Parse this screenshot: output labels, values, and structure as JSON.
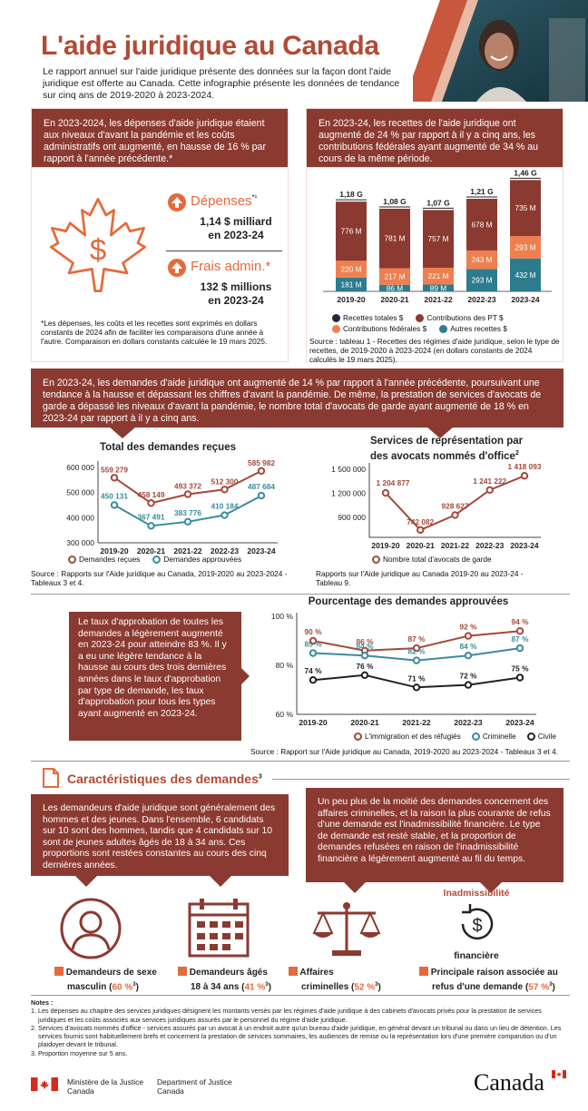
{
  "header": {
    "title": "L'aide juridique au Canada",
    "intro": "Le rapport annuel sur l'aide juridique présente des données sur la façon dont l'aide juridique est offerte au Canada. Cette infographie présente les données de tendance sur cinq ans de 2019-2020 à 2023-2024."
  },
  "box1": {
    "text": "En 2023-2024, les dépenses d'aide juridique étaient aux niveaux d'avant la pandémie et les coûts administratifs ont augmenté, en hausse de 16 % par rapport à l'année précédente.*"
  },
  "box2": {
    "text": "En 2023-24, les recettes de l'aide juridique ont augmenté de 24 % par rapport à il y a cinq ans, les contributions fédérales ayant augmenté de 34 % au cours de la même période."
  },
  "spend": {
    "label1": "Dépenses",
    "sup1": "*¹",
    "value1": "1,14 $ milliard",
    "year1": "en 2023-24",
    "label2": "Frais admin.*",
    "value2": "132 $ millions",
    "year2": "en 2023-24",
    "footnote": "*Les dépenses, les coûts et les recettes sont exprimés en dollars constants de 2024 afin de faciliter les comparaisons d'une année à l'autre. Comparaison en dollars constants calculée le 19 mars 2025."
  },
  "revenue_chart": {
    "type": "bar",
    "categories": [
      "2019-20",
      "2020-21",
      "2021-22",
      "2022-23",
      "2023-24"
    ],
    "totals": [
      "1,18 G",
      "1,08 G",
      "1,07 G",
      "1,21 G",
      "1,46 G"
    ],
    "series": [
      {
        "name": "Autres recettes $",
        "values": [
          181,
          86,
          89,
          293,
          432
        ],
        "labels": [
          "181 M",
          "86 M",
          "89 M",
          "293 M",
          "432 M"
        ],
        "color": "#2d7c8e"
      },
      {
        "name": "Contributions fédérales $",
        "values": [
          220,
          217,
          221,
          243,
          293
        ],
        "labels": [
          "220 M",
          "217 M",
          "221 M",
          "243 M",
          "293 M"
        ],
        "color": "#f07f4f"
      },
      {
        "name": "Contributions des PT $",
        "values": [
          776,
          781,
          757,
          678,
          735
        ],
        "labels": [
          "776 M",
          "781 M",
          "757 M",
          "678 M",
          "735 M"
        ],
        "color": "#8b3a31"
      }
    ],
    "legend": [
      "Recettes totales $",
      "Contributions des PT $",
      "Contributions fédérales $",
      "Autres recettes $"
    ],
    "source": "Source : tableau 1 - Recettes des régimes d'aide juridique, selon le type de recettes, de 2019-2020 à 2023-2024 (en dollars constants de 2024 calculés le 19 mars 2025)."
  },
  "box3": {
    "text": "En 2023-24, les demandes d'aide juridique ont augmenté de 14 % par rapport à l'année précédente, poursuivant une tendance à la hausse et dépassant les chiffres d'avant la pandémie. De même, la prestation de services d'avocats de garde a dépassé les niveaux d'avant la pandémie, le nombre total d'avocats de garde ayant augmenté de 18 % en 2023-24 par rapport à il y a cinq ans."
  },
  "requests_chart": {
    "type": "line",
    "title": "Total des demandes reçues",
    "x": [
      "2019-20",
      "2020-21",
      "2021-22",
      "2022-23",
      "2023-24"
    ],
    "yticks": [
      "600 000",
      "500 000",
      "400 000",
      "300 000"
    ],
    "ylim": [
      300000,
      600000
    ],
    "series": [
      {
        "name": "Demandes reçues",
        "values": [
          559279,
          458149,
          493372,
          512300,
          585982
        ],
        "labels": [
          "559 279",
          "458 149",
          "493 372",
          "512 300",
          "585 982"
        ],
        "color": "#a5493a"
      },
      {
        "name": "Demandes approuvées",
        "values": [
          450131,
          367491,
          383776,
          410184,
          487684
        ],
        "labels": [
          "450 131",
          "367 491",
          "383 776",
          "410 184",
          "487 684"
        ],
        "color": "#3a8c9c"
      }
    ],
    "source": "Source : Rapports sur l'Aide juridique au Canada, 2019-2020 au 2023-2024 - Tableaux 3 et 4."
  },
  "duty_chart": {
    "type": "line",
    "title1": "Services de représentation par",
    "title2": "des avocats nommés d'office",
    "title_sup": "2",
    "x": [
      "2019-20",
      "2020-21",
      "2021-22",
      "2022-23",
      "2023-24"
    ],
    "yticks": [
      "1 500 000",
      "1 200 000",
      "900 000"
    ],
    "ylim": [
      650000,
      1500000
    ],
    "series": [
      {
        "name": "Nombre total d'avocats de garde",
        "values": [
          1204877,
          742082,
          928627,
          1241222,
          1418093
        ],
        "labels": [
          "1 204 877",
          "742 082",
          "928 627",
          "1 241 222",
          "1 418 093"
        ],
        "color": "#a5493a"
      }
    ],
    "source": "Rapports sur l'Aide juridique au Canada 2019-20 au 2023-24 - Tableau 9."
  },
  "approval_box": {
    "text": "Le taux d'approbation de toutes les demandes a légèrement augmenté en 2023-24 pour atteindre 83 %. Il y a eu une légère tendance à la hausse au cours des trois dernières années dans le taux d'approbation par type de demande, les taux d'approbation pour tous les types ayant augmenté en 2023-24."
  },
  "approval_chart": {
    "type": "line",
    "title": "Pourcentage des demandes approuvées",
    "x": [
      "2019-20",
      "2020-21",
      "2021-22",
      "2022-23",
      "2023-24"
    ],
    "yticks": [
      "100 %",
      "80 %",
      "60 %"
    ],
    "ylim": [
      60,
      100
    ],
    "series": [
      {
        "name": "L'immigration et des réfugiés",
        "values": [
          90,
          86,
          87,
          92,
          94
        ],
        "labels": [
          "90 %",
          "86 %",
          "87 %",
          "92 %",
          "94 %"
        ],
        "color": "#a5493a"
      },
      {
        "name": "Criminelle",
        "values": [
          85,
          84,
          82,
          84,
          87
        ],
        "labels": [
          "85 %",
          "84 %",
          "82 %",
          "84 %",
          "87 %"
        ],
        "color": "#3a8c9c"
      },
      {
        "name": "Civile",
        "values": [
          74,
          76,
          71,
          72,
          75
        ],
        "labels": [
          "74 %",
          "76 %",
          "71 %",
          "72 %",
          "75 %"
        ],
        "color": "#222222"
      }
    ],
    "source": "Source : Rapport sur l'Aide juridique au Canada, 2019-2020 au 2023-2024 - Tableaux 3 et 4."
  },
  "characteristics": {
    "title": "Caractéristiques des demandes",
    "sup": "3",
    "box_left": "Les demandeurs d'aide juridique sont généralement des hommes et des jeunes. Dans l'ensemble, 6 candidats sur 10 sont des hommes, tandis que 4 candidats sur 10 sont de jeunes adultes âgés de 18 à 34 ans. Ces proportions sont restées constantes au cours des cinq dernières années.",
    "box_right": "Un peu plus de la moitié des demandes concernent des affaires criminelles, et la raison la plus courante de refus d'une demande est l'inadmissibilité financière. Le type de demande est resté stable, et la proportion de demandes refusées en raison de l'inadmissibilité financière a légèrement augmenté au fil du temps.",
    "inad_top": "Inadmissibilité",
    "inad_bottom": "financière",
    "items": [
      {
        "l1": "Demandeurs de sexe",
        "l2": "masculin",
        "pct": "60 %",
        "sup": "3"
      },
      {
        "l1": "Demandeurs âgés",
        "l2": "18 à 34 ans",
        "pct": "41 %",
        "sup": "3"
      },
      {
        "l1": "Affaires",
        "l2": "criminelles",
        "pct": "52 %",
        "sup": "3"
      },
      {
        "l1": "Principale raison associée au",
        "l2": "refus d'une demande",
        "pct": "57 %",
        "sup": "3"
      }
    ]
  },
  "notes": {
    "title": "Notes :",
    "items": [
      "1. Les dépenses au chapitre des services juridiques désignent les montants versés par les régimes d'aide juridique à des cabinets d'avocats privés pour la prestation de services juridiques et les coûts associés aux services juridiques assurés par le personnel du régime d'aide juridique.",
      "2. Services d'avocats nommés d'office - services assurés par un avocat à un endroit autre qu'un bureau d'aide juridique, en général devant un tribunal ou dans un lieu de détention. Les services fournis sont habituellement brefs et concernent la prestation de services sommaires, les audiences de remise ou la représentation lors d'une première comparution ou d'un plaidoyer devant le tribunal.",
      "3. Proportion moyenne sur 5 ans."
    ]
  },
  "footer": {
    "dept_fr1": "Ministère de la Justice",
    "dept_fr2": "Canada",
    "dept_en1": "Department of Justice",
    "dept_en2": "Canada",
    "wordmark": "Canada"
  },
  "colors": {
    "brick": "#8b3a31",
    "orange": "#e56a3c",
    "teal": "#2d7c8e"
  }
}
